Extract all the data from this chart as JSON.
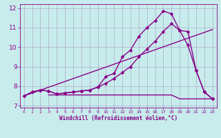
{
  "background_color": "#c8ecec",
  "grid_color": "#aaaacc",
  "line_color": "#880088",
  "xlabel": "Windchill (Refroidissement éolien,°C)",
  "xlim": [
    -0.5,
    23.5
  ],
  "ylim": [
    6.9,
    12.2
  ],
  "yticks": [
    7,
    8,
    9,
    10,
    11,
    12
  ],
  "xticks": [
    0,
    1,
    2,
    3,
    4,
    5,
    6,
    7,
    8,
    9,
    10,
    11,
    12,
    13,
    14,
    15,
    16,
    17,
    18,
    19,
    20,
    21,
    22,
    23
  ],
  "series": [
    {
      "x": [
        0,
        23
      ],
      "y": [
        7.5,
        10.9
      ],
      "marker": null,
      "markersize": 0,
      "linewidth": 1.0
    },
    {
      "x": [
        0,
        1,
        2,
        3,
        4,
        5,
        6,
        7,
        8,
        9,
        10,
        11,
        12,
        13,
        14,
        15,
        16,
        17,
        18,
        19,
        20,
        21,
        22,
        23
      ],
      "y": [
        7.5,
        7.7,
        7.8,
        7.75,
        7.6,
        7.65,
        7.7,
        7.75,
        7.8,
        7.95,
        8.15,
        8.4,
        8.7,
        9.0,
        9.5,
        9.9,
        10.3,
        10.8,
        11.2,
        10.85,
        10.1,
        8.8,
        7.7,
        7.35
      ],
      "marker": "D",
      "markersize": 2.5,
      "linewidth": 1.0
    },
    {
      "x": [
        0,
        1,
        2,
        3,
        4,
        5,
        6,
        7,
        8,
        9,
        10,
        11,
        12,
        13,
        14,
        15,
        16,
        17,
        18,
        19,
        20,
        21,
        22,
        23
      ],
      "y": [
        7.5,
        7.7,
        7.8,
        7.75,
        7.6,
        7.65,
        7.7,
        7.75,
        7.8,
        7.95,
        8.5,
        8.65,
        9.5,
        9.85,
        10.55,
        11.0,
        11.35,
        11.85,
        11.7,
        10.85,
        10.8,
        8.8,
        7.7,
        7.35
      ],
      "marker": "D",
      "markersize": 2.5,
      "linewidth": 1.0
    },
    {
      "x": [
        3,
        4,
        5,
        6,
        7,
        8,
        9,
        10,
        11,
        12,
        13,
        14,
        15,
        16,
        17,
        18,
        19,
        20,
        21,
        22,
        23
      ],
      "y": [
        7.55,
        7.55,
        7.55,
        7.55,
        7.55,
        7.55,
        7.55,
        7.55,
        7.55,
        7.55,
        7.55,
        7.55,
        7.55,
        7.55,
        7.55,
        7.55,
        7.35,
        7.35,
        7.35,
        7.35,
        7.35
      ],
      "marker": null,
      "markersize": 0,
      "linewidth": 1.0
    }
  ]
}
